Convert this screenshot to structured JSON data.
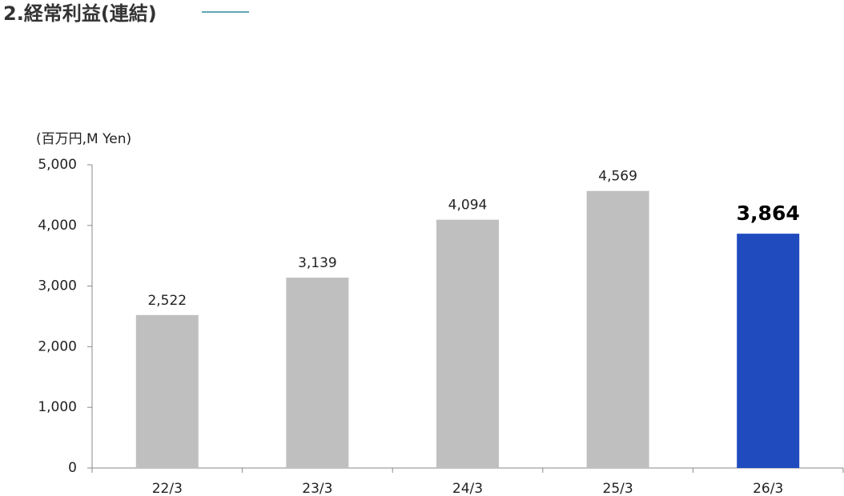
{
  "chart_data": {
    "type": "bar",
    "title": "2.経常利益(連結)",
    "y_label": "(百万円,M Yen)",
    "categories": [
      "22/3",
      "23/3",
      "24/3",
      "25/3",
      "26/3"
    ],
    "values": [
      2522,
      3139,
      4094,
      4569,
      3864
    ],
    "value_labels": [
      "2,522",
      "3,139",
      "4,094",
      "4,569",
      "3,864"
    ],
    "colors": [
      "#bfbfbf",
      "#bfbfbf",
      "#bfbfbf",
      "#bfbfbf",
      "#1f4bbf"
    ],
    "ylim": [
      0,
      5000
    ],
    "yticks": [
      0,
      {
        "value": 1000,
        "label": "1,000"
      },
      {
        "value": 2000,
        "label": "2,000"
      },
      {
        "value": 3000,
        "label": "3,000"
      },
      {
        "value": 4000,
        "label": "4,000"
      },
      {
        "value": 5000,
        "label": "5,000"
      }
    ],
    "grid": false
  }
}
